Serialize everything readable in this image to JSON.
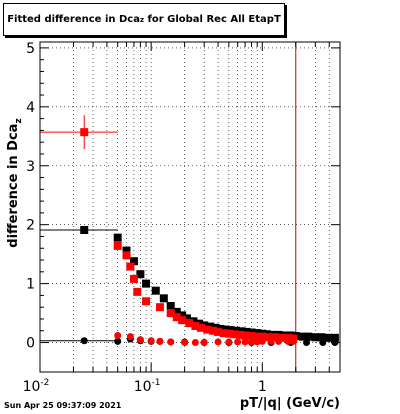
{
  "title": {
    "main": "Fitted difference in Dca",
    "sub": "z",
    "rest": " for Global Rec All EtapT"
  },
  "footer": {
    "timestamp": "Sun Apr 25 09:37:09 2021"
  },
  "colors": {
    "black_series": "#000000",
    "red_series": "#ff0000",
    "vline": "#cc0000",
    "grid": "#000000"
  },
  "chart_data": {
    "type": "scatter",
    "title": "Fitted difference in Dca_z for Global Rec All EtapT",
    "xlabel": "pT/|q| (GeV/c)",
    "ylabel": "difference in Dca",
    "ylabel_sub": "z",
    "xscale": "log",
    "xlim": [
      0.01,
      5
    ],
    "ylim": [
      -0.5,
      5.1
    ],
    "x_ticks": [
      {
        "v": 0.01,
        "base": "10",
        "exp": "-2"
      },
      {
        "v": 0.1,
        "base": "10",
        "exp": "-1"
      },
      {
        "v": 1,
        "base": "1",
        "exp": ""
      }
    ],
    "y_ticks": [
      0,
      1,
      2,
      3,
      4,
      5
    ],
    "grid": true,
    "vertical_line_x": 2.0,
    "series": [
      {
        "color": "#000000",
        "marker": "square",
        "points": [
          [
            0.025,
            1.91
          ],
          [
            0.05,
            1.78
          ],
          [
            0.06,
            1.56
          ],
          [
            0.07,
            1.38
          ],
          [
            0.08,
            1.16
          ],
          [
            0.09,
            1.0
          ],
          [
            0.11,
            0.88
          ],
          [
            0.13,
            0.75
          ],
          [
            0.15,
            0.62
          ],
          [
            0.17,
            0.52
          ],
          [
            0.19,
            0.46
          ],
          [
            0.21,
            0.41
          ],
          [
            0.24,
            0.36
          ],
          [
            0.27,
            0.32
          ],
          [
            0.3,
            0.29
          ],
          [
            0.34,
            0.27
          ],
          [
            0.38,
            0.25
          ],
          [
            0.42,
            0.23
          ],
          [
            0.47,
            0.22
          ],
          [
            0.52,
            0.21
          ],
          [
            0.58,
            0.2
          ],
          [
            0.65,
            0.19
          ],
          [
            0.72,
            0.18
          ],
          [
            0.8,
            0.17
          ],
          [
            0.9,
            0.16
          ],
          [
            1.0,
            0.15
          ],
          [
            1.1,
            0.14
          ],
          [
            1.25,
            0.13
          ],
          [
            1.4,
            0.13
          ],
          [
            1.6,
            0.12
          ],
          [
            1.8,
            0.12
          ],
          [
            2.0,
            0.11
          ],
          [
            2.3,
            0.1
          ],
          [
            2.6,
            0.1
          ],
          [
            3.0,
            0.09
          ],
          [
            3.4,
            0.09
          ],
          [
            3.9,
            0.08
          ],
          [
            4.5,
            0.08
          ]
        ]
      },
      {
        "color": "#000000",
        "marker": "circle",
        "points": [
          [
            0.025,
            0.03
          ],
          [
            0.05,
            0.02
          ],
          [
            0.065,
            0.06
          ],
          [
            0.08,
            0.03
          ],
          [
            0.1,
            0.02
          ],
          [
            0.12,
            0.02
          ],
          [
            0.15,
            0.01
          ],
          [
            0.2,
            0.01
          ],
          [
            0.3,
            0.0
          ],
          [
            0.5,
            0.0
          ],
          [
            0.8,
            0.0
          ],
          [
            1.2,
            0.0
          ],
          [
            1.8,
            0.0
          ],
          [
            2.5,
            0.0
          ],
          [
            3.5,
            0.0
          ],
          [
            4.5,
            0.0
          ]
        ]
      },
      {
        "color": "#ff0000",
        "marker": "square",
        "points": [
          [
            0.025,
            3.57
          ],
          [
            0.05,
            1.64
          ],
          [
            0.06,
            1.48
          ],
          [
            0.065,
            1.29
          ],
          [
            0.07,
            1.08
          ],
          [
            0.075,
            0.86
          ],
          [
            0.09,
            0.7
          ],
          [
            0.12,
            0.6
          ],
          [
            0.15,
            0.5
          ],
          [
            0.17,
            0.43
          ],
          [
            0.19,
            0.38
          ],
          [
            0.22,
            0.33
          ],
          [
            0.25,
            0.28
          ],
          [
            0.28,
            0.25
          ],
          [
            0.32,
            0.22
          ],
          [
            0.36,
            0.2
          ],
          [
            0.4,
            0.18
          ],
          [
            0.45,
            0.16
          ],
          [
            0.5,
            0.15
          ],
          [
            0.56,
            0.14
          ],
          [
            0.63,
            0.13
          ],
          [
            0.7,
            0.12
          ],
          [
            0.8,
            0.11
          ],
          [
            0.9,
            0.1
          ],
          [
            1.0,
            0.1
          ],
          [
            1.15,
            0.09
          ],
          [
            1.3,
            0.09
          ],
          [
            1.5,
            0.08
          ],
          [
            1.7,
            0.08
          ],
          [
            1.9,
            0.07
          ]
        ]
      },
      {
        "color": "#ff0000",
        "marker": "circle",
        "points": [
          [
            0.05,
            0.12
          ],
          [
            0.065,
            0.1
          ],
          [
            0.08,
            0.05
          ],
          [
            0.1,
            0.03
          ],
          [
            0.12,
            0.02
          ],
          [
            0.15,
            0.01
          ],
          [
            0.2,
            0.0
          ],
          [
            0.25,
            0.0
          ],
          [
            0.3,
            0.0
          ],
          [
            0.4,
            0.01
          ],
          [
            0.5,
            0.01
          ],
          [
            0.6,
            0.01
          ],
          [
            0.7,
            0.01
          ],
          [
            0.8,
            0.01
          ],
          [
            0.9,
            0.01
          ],
          [
            1.0,
            0.02
          ],
          [
            1.2,
            0.02
          ],
          [
            1.4,
            0.02
          ],
          [
            1.7,
            0.02
          ],
          [
            1.9,
            0.02
          ]
        ]
      }
    ]
  }
}
